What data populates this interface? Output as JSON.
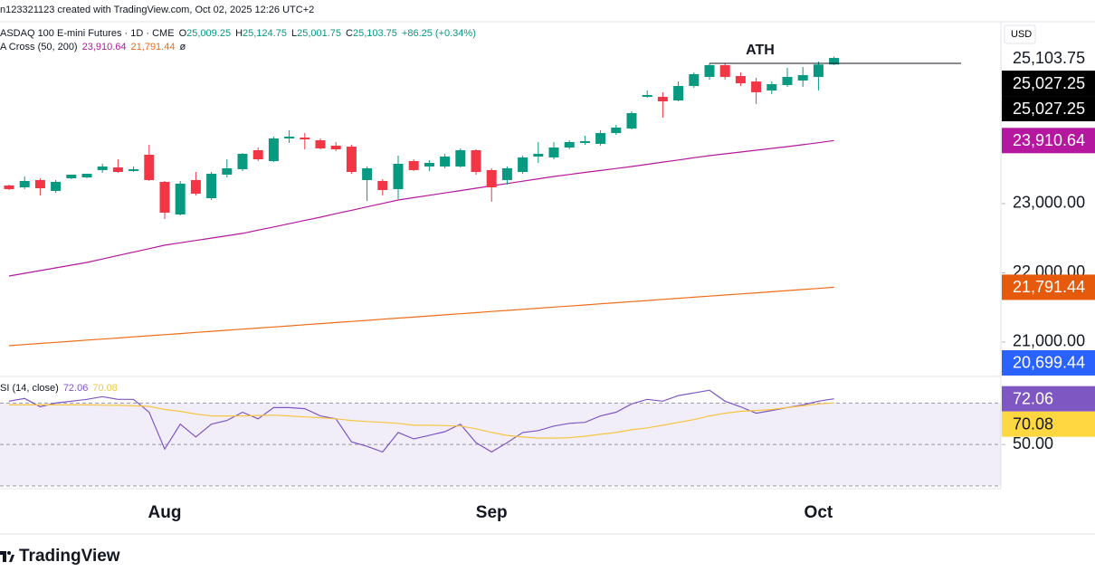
{
  "header": "n123321123 created with TradingView.com, Oct 02, 2025 12:26 UTC+2",
  "footer": "TradingView",
  "chart_data": [
    {
      "type": "candlestick",
      "title": "ASDAQ 100 E-mini Futures · 1D · CME",
      "ohlc": [
        {
          "key": "O",
          "value": "25,009.25"
        },
        {
          "key": "H",
          "value": "25,124.75"
        },
        {
          "key": "L",
          "value": "25,001.75"
        },
        {
          "key": "C",
          "value": "25,103.75"
        }
      ],
      "change": "+86.25 (+0.34%)",
      "indicator": "A Cross (50, 200)",
      "indicator_suffix": "ø",
      "ylabel": "USD",
      "up_color": "#089981",
      "down_color": "#f23645",
      "categories": [
        null,
        null,
        null,
        null,
        null,
        null,
        null,
        null,
        null,
        null,
        "Aug",
        null,
        null,
        null,
        null,
        null,
        null,
        null,
        null,
        null,
        null,
        null,
        null,
        null,
        null,
        null,
        null,
        null,
        null,
        null,
        null,
        "Sep",
        null,
        null,
        null,
        null,
        null,
        null,
        null,
        null,
        null,
        null,
        null,
        null,
        null,
        null,
        null,
        null,
        null,
        null,
        null,
        null,
        "Oct",
        null
      ],
      "open": [
        23261,
        23235,
        23340,
        23183,
        23366,
        23379,
        23484,
        23523,
        23471,
        23706,
        23314,
        22843,
        23340,
        23078,
        23418,
        23497,
        23771,
        23614,
        23941,
        23954,
        23915,
        23837,
        23823,
        23340,
        23327,
        23209,
        23614,
        23536,
        23536,
        23536,
        23771,
        23484,
        23340,
        23457,
        23680,
        23667,
        23810,
        23876,
        23863,
        24019,
        24085,
        24542,
        24542,
        24490,
        24699,
        24830,
        25000,
        24843,
        24764,
        24634,
        24712,
        24778,
        24830,
        25009.25
      ],
      "high": [
        23274,
        23392,
        23366,
        23340,
        23392,
        23405,
        23575,
        23640,
        23536,
        23850,
        23327,
        23327,
        23457,
        23457,
        23640,
        23730,
        23810,
        23967,
        24059,
        24019,
        23941,
        23889,
        23850,
        23536,
        23353,
        23693,
        23640,
        23627,
        23719,
        23797,
        23784,
        23510,
        23536,
        23693,
        23889,
        23889,
        23915,
        23980,
        24059,
        24137,
        24333,
        24634,
        24608,
        24764,
        24895,
        25026,
        25026,
        24895,
        24818,
        24764,
        24960,
        24973,
        25052,
        25124.75
      ],
      "low": [
        23196,
        23209,
        23118,
        23157,
        23353,
        23366,
        23444,
        23444,
        23457,
        23327,
        22778,
        22830,
        23118,
        23052,
        23379,
        23470,
        23614,
        23601,
        23876,
        23784,
        23784,
        23758,
        23431,
        23039,
        23118,
        23065,
        23471,
        23471,
        23510,
        23523,
        23418,
        23026,
        23274,
        23431,
        23588,
        23640,
        23784,
        23850,
        23837,
        23993,
        24072,
        24529,
        24242,
        24477,
        24673,
        24791,
        24791,
        24699,
        24438,
        24581,
        24686,
        24686,
        24634,
        25001.75
      ],
      "close": [
        23209,
        23327,
        23222,
        23314,
        23418,
        23431,
        23536,
        23457,
        23497,
        23340,
        22869,
        23288,
        23144,
        23431,
        23510,
        23719,
        23640,
        23941,
        23967,
        23928,
        23797,
        23784,
        23457,
        23510,
        23196,
        23575,
        23484,
        23588,
        23680,
        23771,
        23457,
        23235,
        23510,
        23667,
        23719,
        23810,
        23889,
        23902,
        24019,
        24098,
        24307,
        24568,
        24477,
        24699,
        24869,
        25000,
        24830,
        24738,
        24608,
        24725,
        24830,
        24856,
        25009,
        25103.75
      ],
      "series": [
        {
          "color": "#b5179e",
          "value_label": "23,910.64",
          "values": [
            21954,
            21993,
            22032,
            22072,
            22111,
            22150,
            22200,
            22250,
            22299,
            22349,
            22399,
            22433,
            22467,
            22501,
            22535,
            22569,
            22616,
            22663,
            22710,
            22757,
            22804,
            22854,
            22903,
            22953,
            23002,
            23052,
            23086,
            23120,
            23154,
            23188,
            23222,
            23256,
            23290,
            23324,
            23358,
            23392,
            23421,
            23450,
            23478,
            23507,
            23536,
            23567,
            23599,
            23630,
            23662,
            23693,
            23719,
            23745,
            23771,
            23797,
            23823,
            23850,
            23880,
            23910.64
          ]
        },
        {
          "color": "#ef6c17",
          "value_label": "21,791.44",
          "values": [
            20948,
            20964,
            20980,
            20996,
            21012,
            21028,
            21043,
            21059,
            21075,
            21091,
            21107,
            21123,
            21139,
            21155,
            21171,
            21187,
            21202,
            21218,
            21234,
            21250,
            21266,
            21282,
            21298,
            21314,
            21330,
            21346,
            21361,
            21377,
            21393,
            21409,
            21425,
            21441,
            21457,
            21473,
            21489,
            21505,
            21520,
            21536,
            21552,
            21568,
            21584,
            21600,
            21616,
            21632,
            21648,
            21664,
            21679,
            21695,
            21711,
            21727,
            21743,
            21759,
            21775,
            21791.44
          ]
        }
      ],
      "ylim": [
        20516,
        25614
      ],
      "yticks": [
        {
          "value": 23000,
          "label": "23,000.00"
        },
        {
          "value": 22000,
          "label": "22,000.00"
        },
        {
          "value": 21000,
          "label": "21,000.00"
        }
      ],
      "grid": false,
      "annotation": {
        "text": "ATH",
        "value": 25026
      },
      "price_labels": [
        {
          "value": 25103.75,
          "label": "25,103.75",
          "bg": "#ffffff",
          "fg": "#131722"
        },
        {
          "value": 25027.25,
          "label": "25,027.25",
          "bg": "#000000",
          "fg": "#ffffff"
        },
        {
          "value": 25027.25,
          "label": "25,027.25",
          "bg": "#000000",
          "fg": "#ffffff"
        },
        {
          "value": 23910.64,
          "label": "23,910.64",
          "bg": "#b5179e",
          "fg": "#ffffff"
        },
        {
          "value": 21791.44,
          "label": "21,791.44",
          "bg": "#e65a0c",
          "fg": "#ffffff"
        },
        {
          "value": 20699.44,
          "label": "20,699.44",
          "bg": "#2962ff",
          "fg": "#ffffff"
        }
      ]
    },
    {
      "type": "line",
      "title": "SI (14, close)",
      "series": [
        {
          "color": "#7e57c2",
          "value_label": "72.06",
          "values": [
            70.9,
            72.2,
            68.2,
            70,
            70.9,
            71.8,
            73.1,
            71.8,
            71.8,
            65.6,
            47.8,
            59.8,
            53.6,
            59.8,
            61.6,
            65.6,
            62.4,
            67.8,
            67.8,
            67.3,
            63.8,
            62.4,
            51.3,
            49.1,
            46.4,
            55.8,
            52.7,
            54.4,
            56.2,
            59.8,
            50.9,
            46.4,
            50.9,
            55.8,
            56.7,
            58.9,
            60.2,
            60.7,
            63.8,
            65.6,
            69.6,
            71.8,
            70.9,
            73.6,
            74.9,
            76.2,
            70.9,
            68.2,
            65.1,
            66.4,
            67.8,
            69.1,
            70.9,
            72.06
          ]
        },
        {
          "color": "#f5c542",
          "value_label": "70.08",
          "values": [
            69.1,
            69.1,
            69.1,
            69.1,
            69.1,
            69.1,
            69,
            68.9,
            68.7,
            68.4,
            66.9,
            66,
            64.7,
            63.8,
            63.8,
            63.8,
            64,
            64.2,
            63.8,
            63.3,
            62.9,
            62.4,
            61.6,
            61.1,
            60.7,
            60.2,
            59.3,
            59.3,
            59.1,
            58.9,
            57.6,
            55.8,
            54.4,
            53.6,
            53.1,
            53.1,
            53.3,
            54,
            54.9,
            55.8,
            57.1,
            58,
            59.3,
            60.7,
            62,
            63.8,
            65.1,
            66,
            66.4,
            66.9,
            67.8,
            68.7,
            69.6,
            70.08
          ]
        }
      ],
      "ylim": [
        29.1,
        82.4
      ],
      "yticks": [
        {
          "value": 50,
          "label": "50.00"
        }
      ],
      "levels": [
        70,
        50,
        30
      ],
      "band_color": "#7e57c2",
      "price_labels": [
        {
          "value": 72.06,
          "label": "72.06",
          "bg": "#7e57c2",
          "fg": "#ffffff"
        },
        {
          "value": 70.08,
          "label": "70.08",
          "bg": "#ffd740",
          "fg": "#131722"
        }
      ]
    }
  ]
}
